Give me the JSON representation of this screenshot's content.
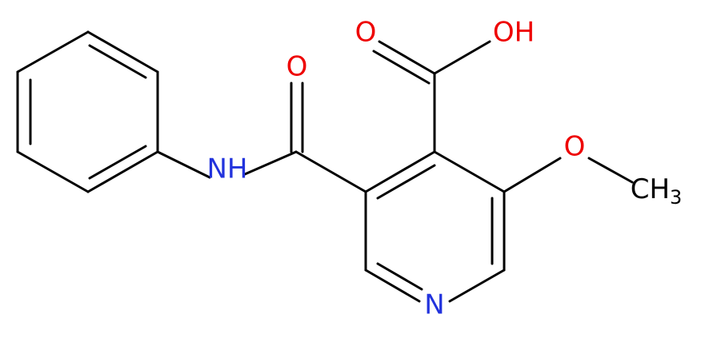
{
  "atoms": {
    "acid_o": "O",
    "acid_oh": "OH",
    "amide_o": "O",
    "amide_nh": "NH",
    "ether_o": "O",
    "methyl": "CH",
    "methyl_sub": "3",
    "ring_n": "N"
  }
}
